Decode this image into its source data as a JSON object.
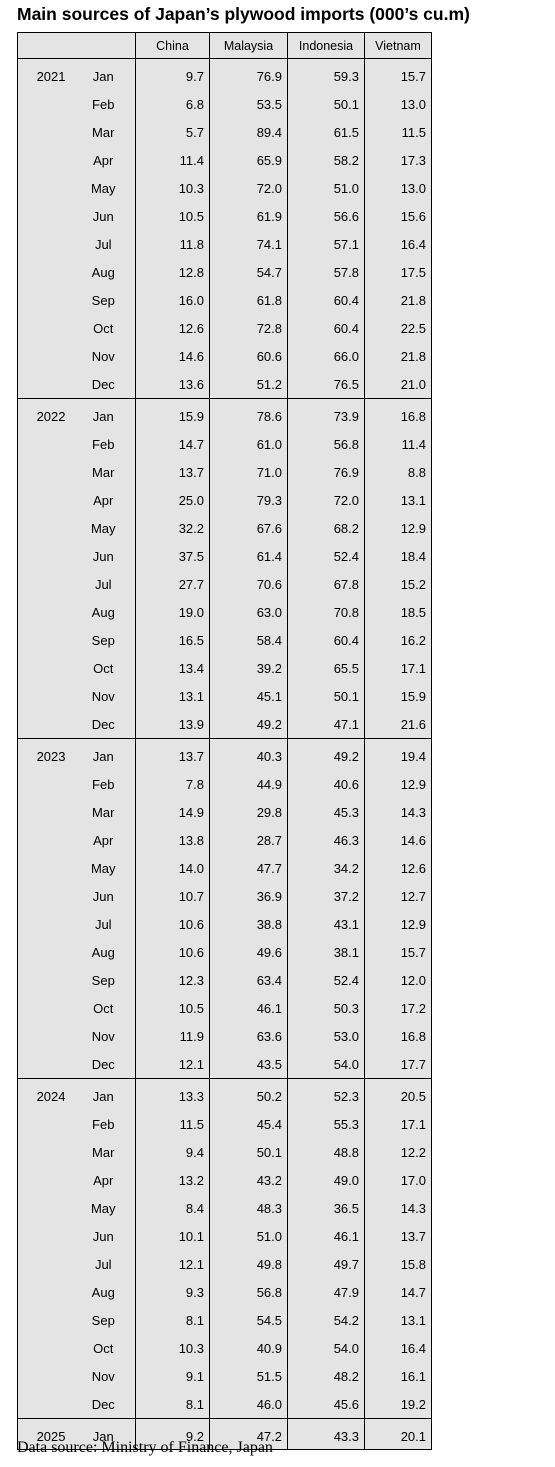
{
  "title": "Main sources of Japan’s plywood imports (000’s cu.m)",
  "source": "Data source: Ministry of Finance, Japan",
  "chart_data": {
    "type": "table",
    "title": "Main sources of Japan’s plywood imports (000’s cu.m)",
    "columns": [
      "China",
      "Malaysia",
      "Indonesia",
      "Vietnam"
    ],
    "years": [
      {
        "year": "2021",
        "rows": [
          {
            "month": "Jan",
            "values": [
              "9.7",
              "76.9",
              "59.3",
              "15.7"
            ]
          },
          {
            "month": "Feb",
            "values": [
              "6.8",
              "53.5",
              "50.1",
              "13.0"
            ]
          },
          {
            "month": "Mar",
            "values": [
              "5.7",
              "89.4",
              "61.5",
              "11.5"
            ]
          },
          {
            "month": "Apr",
            "values": [
              "11.4",
              "65.9",
              "58.2",
              "17.3"
            ]
          },
          {
            "month": "May",
            "values": [
              "10.3",
              "72.0",
              "51.0",
              "13.0"
            ]
          },
          {
            "month": "Jun",
            "values": [
              "10.5",
              "61.9",
              "56.6",
              "15.6"
            ]
          },
          {
            "month": "Jul",
            "values": [
              "11.8",
              "74.1",
              "57.1",
              "16.4"
            ]
          },
          {
            "month": "Aug",
            "values": [
              "12.8",
              "54.7",
              "57.8",
              "17.5"
            ]
          },
          {
            "month": "Sep",
            "values": [
              "16.0",
              "61.8",
              "60.4",
              "21.8"
            ]
          },
          {
            "month": "Oct",
            "values": [
              "12.6",
              "72.8",
              "60.4",
              "22.5"
            ]
          },
          {
            "month": "Nov",
            "values": [
              "14.6",
              "60.6",
              "66.0",
              "21.8"
            ]
          },
          {
            "month": "Dec",
            "values": [
              "13.6",
              "51.2",
              "76.5",
              "21.0"
            ]
          }
        ]
      },
      {
        "year": "2022",
        "rows": [
          {
            "month": "Jan",
            "values": [
              "15.9",
              "78.6",
              "73.9",
              "16.8"
            ]
          },
          {
            "month": "Feb",
            "values": [
              "14.7",
              "61.0",
              "56.8",
              "11.4"
            ]
          },
          {
            "month": "Mar",
            "values": [
              "13.7",
              "71.0",
              "76.9",
              "8.8"
            ]
          },
          {
            "month": "Apr",
            "values": [
              "25.0",
              "79.3",
              "72.0",
              "13.1"
            ]
          },
          {
            "month": "May",
            "values": [
              "32.2",
              "67.6",
              "68.2",
              "12.9"
            ]
          },
          {
            "month": "Jun",
            "values": [
              "37.5",
              "61.4",
              "52.4",
              "18.4"
            ]
          },
          {
            "month": "Jul",
            "values": [
              "27.7",
              "70.6",
              "67.8",
              "15.2"
            ]
          },
          {
            "month": "Aug",
            "values": [
              "19.0",
              "63.0",
              "70.8",
              "18.5"
            ]
          },
          {
            "month": "Sep",
            "values": [
              "16.5",
              "58.4",
              "60.4",
              "16.2"
            ]
          },
          {
            "month": "Oct",
            "values": [
              "13.4",
              "39.2",
              "65.5",
              "17.1"
            ]
          },
          {
            "month": "Nov",
            "values": [
              "13.1",
              "45.1",
              "50.1",
              "15.9"
            ]
          },
          {
            "month": "Dec",
            "values": [
              "13.9",
              "49.2",
              "47.1",
              "21.6"
            ]
          }
        ]
      },
      {
        "year": "2023",
        "rows": [
          {
            "month": "Jan",
            "values": [
              "13.7",
              "40.3",
              "49.2",
              "19.4"
            ]
          },
          {
            "month": "Feb",
            "values": [
              "7.8",
              "44.9",
              "40.6",
              "12.9"
            ]
          },
          {
            "month": "Mar",
            "values": [
              "14.9",
              "29.8",
              "45.3",
              "14.3"
            ]
          },
          {
            "month": "Apr",
            "values": [
              "13.8",
              "28.7",
              "46.3",
              "14.6"
            ]
          },
          {
            "month": "May",
            "values": [
              "14.0",
              "47.7",
              "34.2",
              "12.6"
            ]
          },
          {
            "month": "Jun",
            "values": [
              "10.7",
              "36.9",
              "37.2",
              "12.7"
            ]
          },
          {
            "month": "Jul",
            "values": [
              "10.6",
              "38.8",
              "43.1",
              "12.9"
            ]
          },
          {
            "month": "Aug",
            "values": [
              "10.6",
              "49.6",
              "38.1",
              "15.7"
            ]
          },
          {
            "month": "Sep",
            "values": [
              "12.3",
              "63.4",
              "52.4",
              "12.0"
            ]
          },
          {
            "month": "Oct",
            "values": [
              "10.5",
              "46.1",
              "50.3",
              "17.2"
            ]
          },
          {
            "month": "Nov",
            "values": [
              "11.9",
              "63.6",
              "53.0",
              "16.8"
            ]
          },
          {
            "month": "Dec",
            "values": [
              "12.1",
              "43.5",
              "54.0",
              "17.7"
            ]
          }
        ]
      },
      {
        "year": "2024",
        "rows": [
          {
            "month": "Jan",
            "values": [
              "13.3",
              "50.2",
              "52.3",
              "20.5"
            ]
          },
          {
            "month": "Feb",
            "values": [
              "11.5",
              "45.4",
              "55.3",
              "17.1"
            ]
          },
          {
            "month": "Mar",
            "values": [
              "9.4",
              "50.1",
              "48.8",
              "12.2"
            ]
          },
          {
            "month": "Apr",
            "values": [
              "13.2",
              "43.2",
              "49.0",
              "17.0"
            ]
          },
          {
            "month": "May",
            "values": [
              "8.4",
              "48.3",
              "36.5",
              "14.3"
            ]
          },
          {
            "month": "Jun",
            "values": [
              "10.1",
              "51.0",
              "46.1",
              "13.7"
            ]
          },
          {
            "month": "Jul",
            "values": [
              "12.1",
              "49.8",
              "49.7",
              "15.8"
            ]
          },
          {
            "month": "Aug",
            "values": [
              "9.3",
              "56.8",
              "47.9",
              "14.7"
            ]
          },
          {
            "month": "Sep",
            "values": [
              "8.1",
              "54.5",
              "54.2",
              "13.1"
            ]
          },
          {
            "month": "Oct",
            "values": [
              "10.3",
              "40.9",
              "54.0",
              "16.4"
            ]
          },
          {
            "month": "Nov",
            "values": [
              "9.1",
              "51.5",
              "48.2",
              "16.1"
            ]
          },
          {
            "month": "Dec",
            "values": [
              "8.1",
              "46.0",
              "45.6",
              "19.2"
            ]
          }
        ]
      },
      {
        "year": "2025",
        "rows": [
          {
            "month": "Jan",
            "values": [
              "9.2",
              "47.2",
              "43.3",
              "20.1"
            ]
          }
        ]
      }
    ]
  }
}
